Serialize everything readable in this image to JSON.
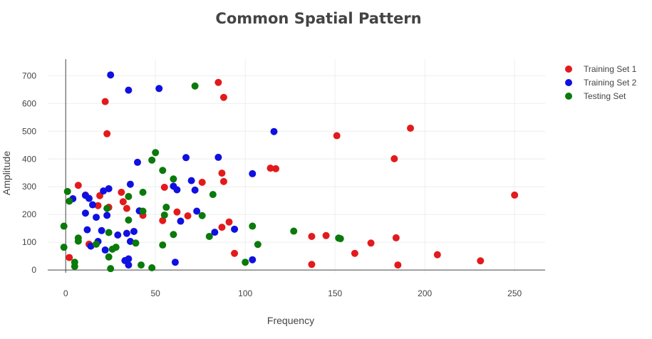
{
  "chart_data": {
    "type": "scatter",
    "title": "Common Spatial Pattern",
    "xlabel": "Frequency",
    "ylabel": "Amplitude",
    "xlim": [
      -10,
      267
    ],
    "ylim": [
      -10,
      760
    ],
    "xticks": [
      0,
      50,
      100,
      150,
      200,
      250
    ],
    "yticks": [
      0,
      100,
      200,
      300,
      400,
      500,
      600,
      700
    ],
    "grid": true,
    "legend_position": "top-right",
    "series": [
      {
        "name": "Training Set 1",
        "color": "#e31a1c",
        "points": [
          [
            85,
            676
          ],
          [
            88,
            622
          ],
          [
            22,
            607
          ],
          [
            192,
            511
          ],
          [
            151,
            484
          ],
          [
            23,
            491
          ],
          [
            183,
            401
          ],
          [
            114,
            367
          ],
          [
            117,
            365
          ],
          [
            87,
            349
          ],
          [
            88,
            319
          ],
          [
            76,
            316
          ],
          [
            7,
            305
          ],
          [
            55,
            298
          ],
          [
            31,
            280
          ],
          [
            19,
            268
          ],
          [
            11,
            270
          ],
          [
            32,
            246
          ],
          [
            24,
            226
          ],
          [
            34,
            222
          ],
          [
            18,
            232
          ],
          [
            43,
            197
          ],
          [
            62,
            209
          ],
          [
            68,
            195
          ],
          [
            91,
            173
          ],
          [
            54,
            178
          ],
          [
            87,
            154
          ],
          [
            13,
            93
          ],
          [
            137,
            121
          ],
          [
            145,
            124
          ],
          [
            184,
            116
          ],
          [
            170,
            97
          ],
          [
            161,
            60
          ],
          [
            94,
            60
          ],
          [
            207,
            55
          ],
          [
            231,
            33
          ],
          [
            137,
            20
          ],
          [
            185,
            18
          ],
          [
            250,
            270
          ],
          [
            2,
            45
          ]
        ]
      },
      {
        "name": "Training Set 2",
        "color": "#1010e0",
        "points": [
          [
            25,
            703
          ],
          [
            35,
            648
          ],
          [
            52,
            654
          ],
          [
            116,
            499
          ],
          [
            67,
            405
          ],
          [
            85,
            406
          ],
          [
            40,
            388
          ],
          [
            104,
            347
          ],
          [
            70,
            322
          ],
          [
            36,
            309
          ],
          [
            60,
            302
          ],
          [
            62,
            289
          ],
          [
            72,
            288
          ],
          [
            24,
            293
          ],
          [
            21,
            285
          ],
          [
            4,
            257
          ],
          [
            13,
            258
          ],
          [
            11,
            269
          ],
          [
            15,
            235
          ],
          [
            41,
            213
          ],
          [
            73,
            212
          ],
          [
            11,
            205
          ],
          [
            23,
            197
          ],
          [
            17,
            190
          ],
          [
            64,
            176
          ],
          [
            94,
            147
          ],
          [
            12,
            145
          ],
          [
            20,
            142
          ],
          [
            34,
            132
          ],
          [
            38,
            139
          ],
          [
            29,
            126
          ],
          [
            83,
            136
          ],
          [
            18,
            103
          ],
          [
            36,
            103
          ],
          [
            14,
            86
          ],
          [
            22,
            72
          ],
          [
            33,
            34
          ],
          [
            35,
            40
          ],
          [
            35,
            18
          ],
          [
            61,
            28
          ],
          [
            104,
            37
          ]
        ]
      },
      {
        "name": "Testing Set",
        "color": "#0a7a0a",
        "points": [
          [
            72,
            663
          ],
          [
            50,
            423
          ],
          [
            48,
            396
          ],
          [
            54,
            359
          ],
          [
            60,
            328
          ],
          [
            1,
            283
          ],
          [
            2,
            248
          ],
          [
            35,
            265
          ],
          [
            43,
            280
          ],
          [
            82,
            272
          ],
          [
            56,
            226
          ],
          [
            23,
            222
          ],
          [
            43,
            212
          ],
          [
            55,
            198
          ],
          [
            76,
            196
          ],
          [
            35,
            180
          ],
          [
            -1,
            158
          ],
          [
            104,
            158
          ],
          [
            127,
            140
          ],
          [
            153,
            113
          ],
          [
            60,
            128
          ],
          [
            80,
            121
          ],
          [
            39,
            97
          ],
          [
            107,
            92
          ],
          [
            54,
            90
          ],
          [
            7,
            115
          ],
          [
            7,
            104
          ],
          [
            17,
            93
          ],
          [
            28,
            82
          ],
          [
            26,
            75
          ],
          [
            -1,
            82
          ],
          [
            24,
            47
          ],
          [
            5,
            28
          ],
          [
            5,
            13
          ],
          [
            42,
            18
          ],
          [
            48,
            8
          ],
          [
            25,
            5
          ],
          [
            100,
            28
          ],
          [
            24,
            135
          ],
          [
            152,
            115
          ]
        ]
      }
    ]
  }
}
